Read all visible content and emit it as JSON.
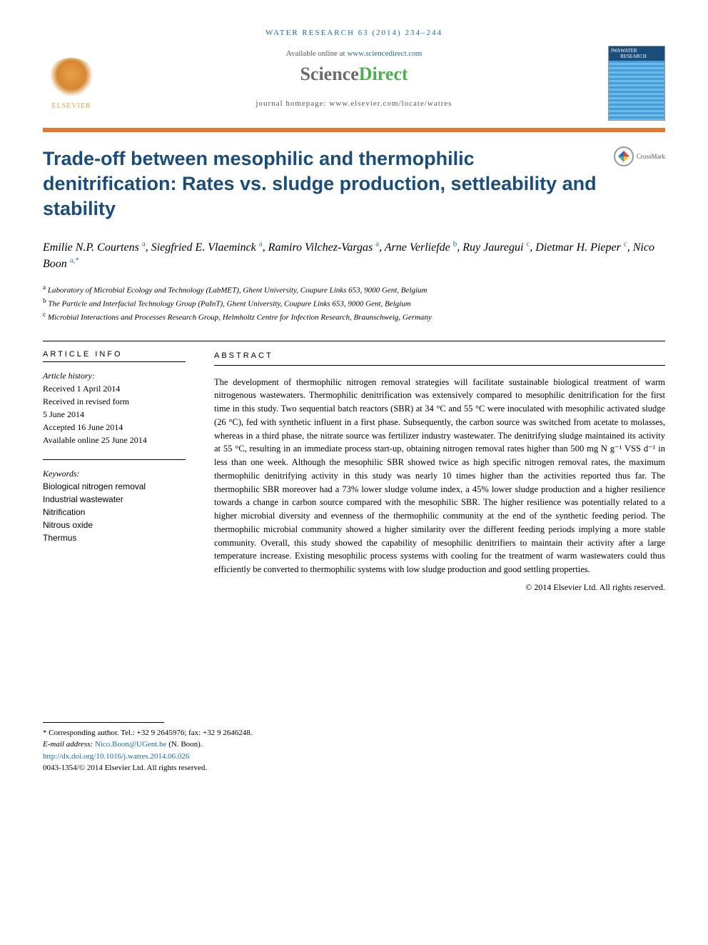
{
  "header": {
    "citation_prefix": "WATER RESEARCH 63 (2014) 234",
    "citation_suffix": "244",
    "available_prefix": "Available online at ",
    "available_link": "www.sciencedirect.com",
    "sd_science": "Science",
    "sd_direct": "Direct",
    "homepage_prefix": "journal homepage: ",
    "homepage_url": "www.elsevier.com/locate/watres",
    "elsevier_label": "ELSEVIER",
    "cover_iwa": "IWA",
    "cover_title": "WATER RESEARCH",
    "crossmark": "CrossMark"
  },
  "title": "Trade-off between mesophilic and thermophilic denitrification: Rates vs. sludge production, settleability and stability",
  "authors": [
    {
      "name": "Emilie N.P. Courtens",
      "aff": "a"
    },
    {
      "name": "Siegfried E. Vlaeminck",
      "aff": "a"
    },
    {
      "name": "Ramiro Vilchez-Vargas",
      "aff": "a"
    },
    {
      "name": "Arne Verliefde",
      "aff": "b"
    },
    {
      "name": "Ruy Jauregui",
      "aff": "c"
    },
    {
      "name": "Dietmar H. Pieper",
      "aff": "c"
    },
    {
      "name": "Nico Boon",
      "aff": "a",
      "corr": true
    }
  ],
  "affiliations": {
    "a": "Laboratory of Microbial Ecology and Technology (LabMET), Ghent University, Coupure Links 653, 9000 Gent, Belgium",
    "b": "The Particle and Interfacial Technology Group (PaInT), Ghent University, Coupure Links 653, 9000 Gent, Belgium",
    "c": "Microbial Interactions and Processes Research Group, Helmholtz Centre for Infection Research, Braunschweig, Germany"
  },
  "info": {
    "heading": "ARTICLE INFO",
    "history_label": "Article history:",
    "history": [
      "Received 1 April 2014",
      "Received in revised form",
      "5 June 2014",
      "Accepted 16 June 2014",
      "Available online 25 June 2014"
    ],
    "keywords_label": "Keywords:",
    "keywords": [
      "Biological nitrogen removal",
      "Industrial wastewater",
      "Nitrification",
      "Nitrous oxide",
      "Thermus"
    ]
  },
  "abstract": {
    "heading": "ABSTRACT",
    "text": "The development of thermophilic nitrogen removal strategies will facilitate sustainable biological treatment of warm nitrogenous wastewaters. Thermophilic denitrification was extensively compared to mesophilic denitrification for the first time in this study. Two sequential batch reactors (SBR) at 34 °C and 55 °C were inoculated with mesophilic activated sludge (26 °C), fed with synthetic influent in a first phase. Subsequently, the carbon source was switched from acetate to molasses, whereas in a third phase, the nitrate source was fertilizer industry wastewater. The denitrifying sludge maintained its activity at 55 °C, resulting in an immediate process start-up, obtaining nitrogen removal rates higher than 500 mg N g⁻¹ VSS d⁻¹ in less than one week. Although the mesophilic SBR showed twice as high specific nitrogen removal rates, the maximum thermophilic denitrifying activity in this study was nearly 10 times higher than the activities reported thus far. The thermophilic SBR moreover had a 73% lower sludge volume index, a 45% lower sludge production and a higher resilience towards a change in carbon source compared with the mesophilic SBR. The higher resilience was potentially related to a higher microbial diversity and evenness of the thermophilic community at the end of the synthetic feeding period. The thermophilic microbial community showed a higher similarity over the different feeding periods implying a more stable community. Overall, this study showed the capability of mesophilic denitrifiers to maintain their activity after a large temperature increase. Existing mesophilic process systems with cooling for the treatment of warm wastewaters could thus efficiently be converted to thermophilic systems with low sludge production and good settling properties.",
    "copyright": "© 2014 Elsevier Ltd. All rights reserved."
  },
  "footnote": {
    "corr_label": "* Corresponding author. Tel.: +32 9 2645976; fax: +32 9 2646248.",
    "email_label": "E-mail address: ",
    "email": "Nico.Boon@UGent.be",
    "email_person": " (N. Boon).",
    "doi": "http://dx.doi.org/10.1016/j.watres.2014.06.026",
    "issn": "0043-1354/© 2014 Elsevier Ltd. All rights reserved."
  },
  "colors": {
    "link": "#1a6ba8",
    "title": "#1a4d7a",
    "orange_bar": "#e8772e",
    "sd_green": "#4caf50",
    "sd_grey": "#6b6b6b"
  }
}
